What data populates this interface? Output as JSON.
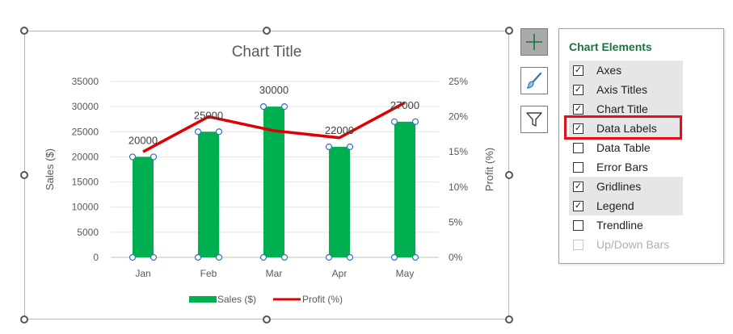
{
  "chart_data": {
    "type": "bar+line",
    "title": "Chart Title",
    "categories": [
      "Jan",
      "Feb",
      "Mar",
      "Apr",
      "May"
    ],
    "series": [
      {
        "name": "Sales ($)",
        "type": "bar",
        "axis": "primary",
        "values": [
          20000,
          25000,
          30000,
          22000,
          27000
        ],
        "color": "#00b050"
      },
      {
        "name": "Profit (%)",
        "type": "line",
        "axis": "secondary",
        "values": [
          15,
          20,
          18,
          17,
          22
        ],
        "color": "#e00000"
      }
    ],
    "data_labels": [
      "20000",
      "25000",
      "30000",
      "22000",
      "27000"
    ],
    "ylabel": "Sales ($)",
    "y2label": "Profit (%)",
    "ylim": [
      0,
      35000
    ],
    "y2lim": [
      0,
      25
    ],
    "y_ticks": [
      "0",
      "5000",
      "10000",
      "15000",
      "20000",
      "25000",
      "30000",
      "35000"
    ],
    "y2_ticks": [
      "0%",
      "5%",
      "10%",
      "15%",
      "20%",
      "25%"
    ],
    "grid": true,
    "legend_position": "bottom"
  },
  "side_buttons": {
    "add_icon": "plus-icon",
    "style_icon": "paintbrush-icon",
    "filter_icon": "filter-icon"
  },
  "panel": {
    "title": "Chart Elements",
    "items": [
      {
        "label": "Axes",
        "checked": true,
        "enabled": true
      },
      {
        "label": "Axis Titles",
        "checked": true,
        "enabled": true
      },
      {
        "label": "Chart Title",
        "checked": true,
        "enabled": true
      },
      {
        "label": "Data Labels",
        "checked": true,
        "enabled": true
      },
      {
        "label": "Data Table",
        "checked": false,
        "enabled": true
      },
      {
        "label": "Error Bars",
        "checked": false,
        "enabled": true
      },
      {
        "label": "Gridlines",
        "checked": true,
        "enabled": true
      },
      {
        "label": "Legend",
        "checked": true,
        "enabled": true
      },
      {
        "label": "Trendline",
        "checked": false,
        "enabled": true
      },
      {
        "label": "Up/Down Bars",
        "checked": false,
        "enabled": false
      }
    ],
    "highlight_color": "#e3101c",
    "title_color": "#1e7145"
  }
}
